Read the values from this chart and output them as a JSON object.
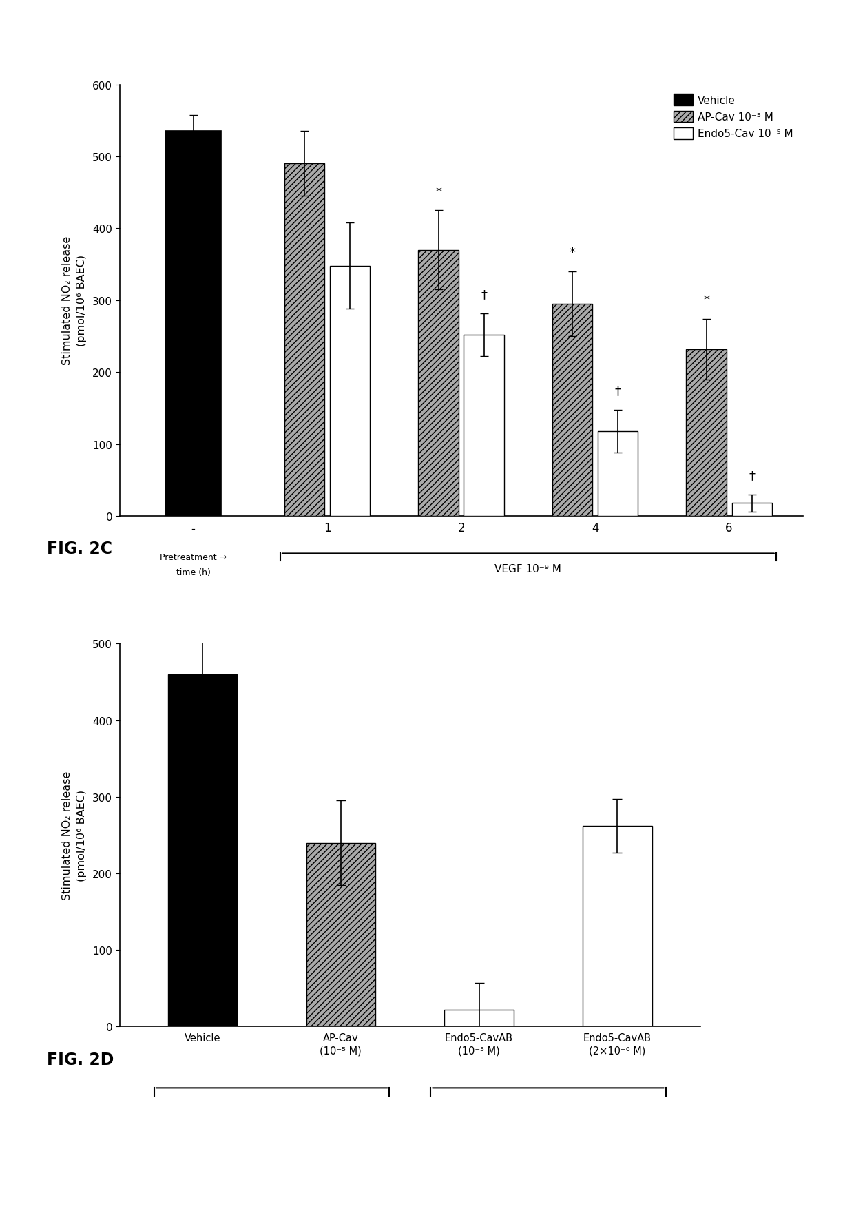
{
  "fig2c": {
    "ylabel": "Stimulated NO₂ release\n(pmol/10⁶ BAEC)",
    "ylim": [
      0,
      600
    ],
    "yticks": [
      0,
      100,
      200,
      300,
      400,
      500,
      600
    ],
    "groups": [
      "-",
      "1",
      "2",
      "4",
      "6"
    ],
    "vehicle_bar": {
      "value": 535,
      "err": 22,
      "color": "#000000"
    },
    "apcav_bars": {
      "values": [
        490,
        370,
        295,
        232
      ],
      "errors": [
        45,
        55,
        45,
        42
      ],
      "color": "#aaaaaa",
      "hatch": "////"
    },
    "endo5_bars": {
      "values": [
        348,
        252,
        118,
        18
      ],
      "errors": [
        60,
        30,
        30,
        12
      ],
      "color": "#ffffff",
      "hatch": ""
    },
    "legend_labels": [
      "Vehicle",
      "AP-Cav 10⁻⁵ M",
      "Endo5-Cav 10⁻⁵ M"
    ],
    "apcav_sig": [
      "",
      "",
      "*",
      "*",
      "*"
    ],
    "endo5_sig": [
      "",
      "",
      "†",
      "†",
      "†"
    ],
    "pretreat_label1": "Pretreatment →",
    "pretreat_label2": "time (h)",
    "vegf_label": "VEGF 10⁻⁹ M",
    "fig_label": "FIG. 2C"
  },
  "fig2d": {
    "ylabel": "Stimulated NO₂ release\n(pmol/10⁶ BAEC)",
    "ylim": [
      0,
      500
    ],
    "yticks": [
      0,
      100,
      200,
      300,
      400,
      500
    ],
    "categories": [
      "Vehicle",
      "AP-Cav\n(10⁻⁵ M)",
      "Endo5-CavAB\n(10⁻⁵ M)",
      "Endo5-CavAB\n(2×10⁻⁶ M)"
    ],
    "values": [
      460,
      240,
      22,
      262
    ],
    "errors": [
      45,
      55,
      35,
      35
    ],
    "colors": [
      "#000000",
      "#aaaaaa",
      "#ffffff",
      "#ffffff"
    ],
    "hatches": [
      "",
      "////",
      "",
      ""
    ],
    "edge_colors": [
      "#000000",
      "#000000",
      "#000000",
      "#000000"
    ],
    "fig_label": "FIG. 2D"
  },
  "background_color": "#ffffff"
}
